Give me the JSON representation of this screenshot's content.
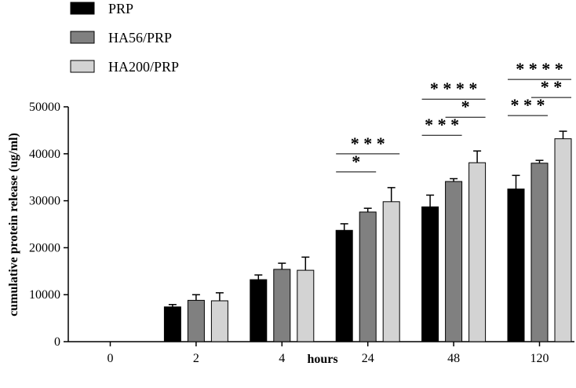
{
  "chart_data": {
    "type": "bar",
    "xlabel": "hours",
    "ylabel": "cumulative protein release (ug/ml)",
    "categories": [
      "0",
      "2",
      "4",
      "24",
      "48",
      "120"
    ],
    "ylim": [
      0,
      50000
    ],
    "yticks": [
      0,
      10000,
      20000,
      30000,
      40000,
      50000
    ],
    "yticks_labels": [
      "0",
      "10000",
      "20000",
      "30000",
      "40000",
      "50000"
    ],
    "legend_position": "top-left",
    "grid": false,
    "series": [
      {
        "name": "PRP",
        "color": "#000000",
        "values": [
          0,
          7400,
          13200,
          23700,
          28700,
          32500
        ],
        "errors": [
          0,
          500,
          1000,
          1400,
          2500,
          2900
        ]
      },
      {
        "name": "HA56/PRP",
        "color": "#808080",
        "values": [
          0,
          8800,
          15400,
          27600,
          34100,
          38000
        ],
        "errors": [
          0,
          1200,
          1300,
          800,
          600,
          600
        ]
      },
      {
        "name": "HA200/PRP",
        "color": "#d3d3d3",
        "values": [
          0,
          8700,
          15200,
          29800,
          38100,
          43200
        ],
        "errors": [
          0,
          1700,
          2800,
          3000,
          2500,
          1600
        ]
      }
    ],
    "significance": [
      {
        "category": "24",
        "from_series": 0,
        "to_series": 1,
        "label": "*"
      },
      {
        "category": "24",
        "from_series": 0,
        "to_series": 2,
        "label": "* * *"
      },
      {
        "category": "48",
        "from_series": 0,
        "to_series": 1,
        "label": "* * *"
      },
      {
        "category": "48",
        "from_series": 0,
        "to_series": 2,
        "label": "* * * *"
      },
      {
        "category": "48",
        "from_series": 1,
        "to_series": 2,
        "label": "*"
      },
      {
        "category": "120",
        "from_series": 0,
        "to_series": 1,
        "label": "* * *"
      },
      {
        "category": "120",
        "from_series": 0,
        "to_series": 2,
        "label": "* * * *"
      },
      {
        "category": "120",
        "from_series": 1,
        "to_series": 2,
        "label": "* *"
      }
    ]
  }
}
